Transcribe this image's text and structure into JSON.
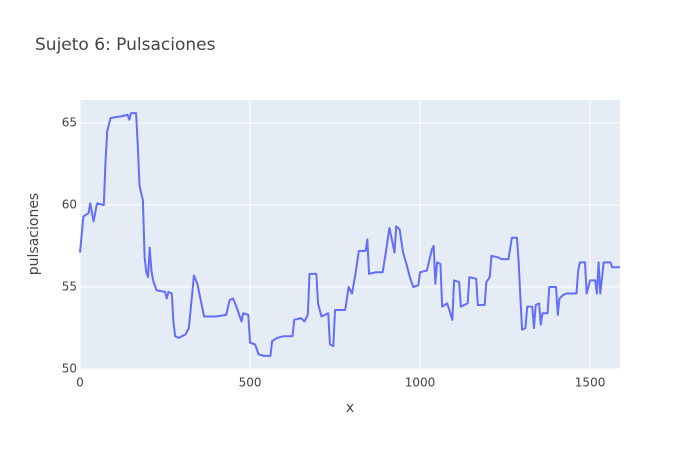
{
  "chart_data": {
    "type": "line",
    "title": "Sujeto 6: Pulsaciones",
    "x_label": "x",
    "y_label": "pulsaciones",
    "color": "#636efa",
    "grid": true,
    "xlim": [
      0,
      1588
    ],
    "ylim": [
      50,
      66.4
    ],
    "xticks": [
      0,
      500,
      1000,
      1500
    ],
    "yticks": [
      50,
      55,
      60,
      65
    ],
    "x": [
      0,
      5,
      10,
      25,
      30,
      40,
      50,
      70,
      75,
      80,
      90,
      120,
      140,
      145,
      150,
      165,
      170,
      175,
      180,
      185,
      190,
      195,
      200,
      205,
      210,
      215,
      225,
      250,
      255,
      260,
      270,
      275,
      280,
      290,
      310,
      320,
      330,
      335,
      345,
      355,
      365,
      400,
      430,
      440,
      450,
      460,
      475,
      480,
      495,
      500,
      515,
      525,
      540,
      560,
      565,
      580,
      600,
      625,
      630,
      650,
      660,
      670,
      675,
      695,
      700,
      710,
      720,
      730,
      735,
      745,
      750,
      780,
      790,
      800,
      810,
      820,
      840,
      845,
      850,
      870,
      890,
      900,
      910,
      925,
      930,
      940,
      945,
      950,
      960,
      970,
      980,
      995,
      1000,
      1020,
      1035,
      1040,
      1045,
      1050,
      1060,
      1065,
      1080,
      1095,
      1100,
      1115,
      1120,
      1140,
      1145,
      1165,
      1170,
      1190,
      1195,
      1205,
      1210,
      1230,
      1240,
      1260,
      1270,
      1285,
      1290,
      1295,
      1300,
      1310,
      1315,
      1330,
      1335,
      1340,
      1350,
      1355,
      1360,
      1375,
      1380,
      1400,
      1405,
      1410,
      1420,
      1430,
      1460,
      1465,
      1470,
      1485,
      1490,
      1500,
      1515,
      1520,
      1525,
      1530,
      1540,
      1560,
      1565,
      1588
    ],
    "values": [
      57.1,
      58.2,
      59.3,
      59.5,
      60.1,
      59.0,
      60.1,
      60.0,
      62.6,
      64.5,
      65.3,
      65.4,
      65.5,
      65.2,
      65.6,
      65.6,
      63.6,
      61.2,
      60.7,
      60.3,
      56.8,
      55.9,
      55.6,
      57.4,
      56.0,
      55.4,
      54.8,
      54.7,
      54.3,
      54.7,
      54.6,
      52.8,
      52.0,
      51.9,
      52.1,
      52.5,
      54.6,
      55.7,
      55.2,
      54.2,
      53.2,
      53.2,
      53.3,
      54.2,
      54.3,
      53.8,
      52.9,
      53.4,
      53.3,
      51.6,
      51.5,
      50.9,
      50.8,
      50.8,
      51.7,
      51.9,
      52.0,
      52.0,
      53.0,
      53.1,
      52.9,
      53.3,
      55.8,
      55.8,
      54.0,
      53.2,
      53.3,
      53.4,
      51.5,
      51.4,
      53.6,
      53.6,
      55.0,
      54.6,
      55.8,
      57.2,
      57.2,
      57.9,
      55.8,
      55.9,
      55.9,
      57.2,
      58.6,
      57.1,
      58.7,
      58.5,
      57.8,
      57.1,
      56.4,
      55.6,
      55.0,
      55.1,
      55.9,
      56.0,
      57.3,
      57.5,
      55.2,
      56.5,
      56.4,
      53.8,
      54.0,
      53.0,
      55.4,
      55.3,
      53.8,
      54.0,
      55.6,
      55.5,
      53.9,
      53.9,
      55.3,
      55.6,
      56.9,
      56.8,
      56.7,
      56.7,
      58.0,
      58.0,
      56.5,
      54.4,
      52.4,
      52.5,
      53.8,
      53.8,
      52.5,
      53.9,
      54.0,
      52.7,
      53.4,
      53.4,
      55.0,
      55.0,
      53.3,
      54.3,
      54.5,
      54.6,
      54.6,
      56.0,
      56.5,
      56.5,
      54.6,
      55.4,
      55.4,
      54.6,
      56.5,
      54.6,
      56.5,
      56.5,
      56.2,
      56.2
    ]
  }
}
